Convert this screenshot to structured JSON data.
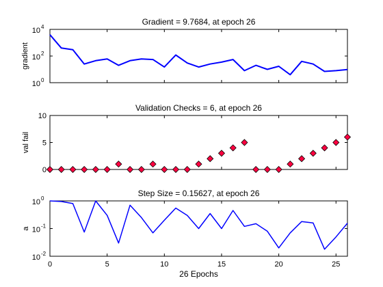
{
  "chart_data": [
    {
      "type": "line",
      "title": "Gradient = 9.7684, at epoch 26",
      "ylabel": "gradient",
      "xlabel": "",
      "yscale": "log",
      "xlim": [
        0,
        26
      ],
      "ylim": [
        1,
        10000
      ],
      "yticks": [
        1,
        100,
        10000
      ],
      "ytick_labels": [
        {
          "base": "10",
          "exp": "0"
        },
        {
          "base": "10",
          "exp": "2"
        },
        {
          "base": "10",
          "exp": "4"
        }
      ],
      "x": [
        0,
        1,
        2,
        3,
        4,
        5,
        6,
        7,
        8,
        9,
        10,
        11,
        12,
        13,
        14,
        15,
        16,
        17,
        18,
        19,
        20,
        21,
        22,
        23,
        24,
        25,
        26
      ],
      "values": [
        4000,
        400,
        300,
        25,
        45,
        60,
        20,
        45,
        60,
        55,
        15,
        120,
        30,
        15,
        25,
        35,
        55,
        8,
        20,
        10,
        17,
        4,
        40,
        25,
        7,
        8,
        9.7684
      ]
    },
    {
      "type": "scatter",
      "title": "Validation Checks = 6, at epoch 26",
      "ylabel": "val fail",
      "xlabel": "",
      "xlim": [
        0,
        26
      ],
      "ylim": [
        0,
        10
      ],
      "yticks": [
        0,
        5,
        10
      ],
      "ytick_labels": [
        "0",
        "5",
        "10"
      ],
      "marker": "diamond",
      "x": [
        0,
        1,
        2,
        3,
        4,
        5,
        6,
        7,
        8,
        9,
        10,
        11,
        12,
        13,
        14,
        15,
        16,
        17,
        18,
        19,
        20,
        21,
        22,
        23,
        24,
        25,
        26
      ],
      "values": [
        0,
        0,
        0,
        0,
        0,
        0,
        1,
        0,
        0,
        1,
        0,
        0,
        0,
        1,
        2,
        3,
        4,
        5,
        0,
        0,
        0,
        1,
        2,
        3,
        4,
        5,
        6
      ]
    },
    {
      "type": "line",
      "title": "Step Size = 0.15627, at epoch 26",
      "ylabel": "a",
      "xlabel": "26 Epochs",
      "yscale": "log",
      "xlim": [
        0,
        26
      ],
      "ylim": [
        0.01,
        1
      ],
      "yticks": [
        0.01,
        0.1,
        1
      ],
      "ytick_labels": [
        {
          "base": "10",
          "exp": "-2"
        },
        {
          "base": "10",
          "exp": "-1"
        },
        {
          "base": "10",
          "exp": "0"
        }
      ],
      "xticks": [
        0,
        5,
        10,
        15,
        20,
        25
      ],
      "xtick_labels": [
        "0",
        "5",
        "10",
        "15",
        "20",
        "25"
      ],
      "x": [
        0,
        1,
        2,
        3,
        4,
        5,
        6,
        7,
        8,
        9,
        10,
        11,
        12,
        13,
        14,
        15,
        16,
        17,
        18,
        19,
        20,
        21,
        22,
        23,
        24,
        25,
        26
      ],
      "values": [
        1.0,
        0.95,
        0.8,
        0.075,
        1.0,
        0.3,
        0.03,
        0.7,
        0.25,
        0.07,
        0.2,
        0.55,
        0.3,
        0.1,
        0.35,
        0.1,
        0.45,
        0.12,
        0.15,
        0.08,
        0.02,
        0.07,
        0.18,
        0.16,
        0.018,
        0.05,
        0.15627
      ]
    }
  ],
  "colors": {
    "line": "#0000ff",
    "marker_fill": "#ff0040",
    "axis": "#000000"
  }
}
